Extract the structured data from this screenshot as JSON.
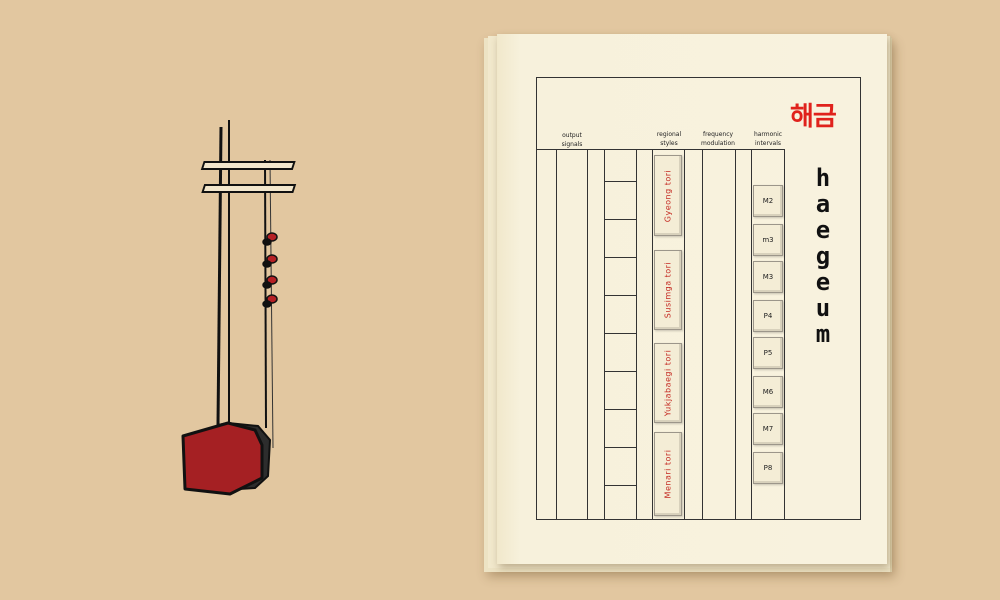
{
  "booklet": {
    "title_korean": "해금",
    "title_english": [
      "h",
      "a",
      "e",
      "g",
      "e",
      "u",
      "m"
    ],
    "columns": [
      {
        "line1": "output",
        "line2": "signals"
      },
      {
        "line1": "regional",
        "line2": "styles"
      },
      {
        "line1": "frequency",
        "line2": "modulation"
      },
      {
        "line1": "harmonic",
        "line2": "intervals"
      }
    ],
    "regional_styles": [
      "Gyeong  tori",
      "Susimga  tori",
      "Yukjabaegi  tori",
      "Menari  tori"
    ],
    "harmonic_intervals": [
      "M2",
      "m3",
      "M3",
      "P4",
      "P5",
      "M6",
      "M7",
      "P8"
    ]
  },
  "colors": {
    "background": "#e2c7a0",
    "page": "#f8f2de",
    "accent_red": "#e0221c",
    "instrument_body": "#a52023"
  },
  "instrument": {
    "name": "haegeum-illustration"
  }
}
